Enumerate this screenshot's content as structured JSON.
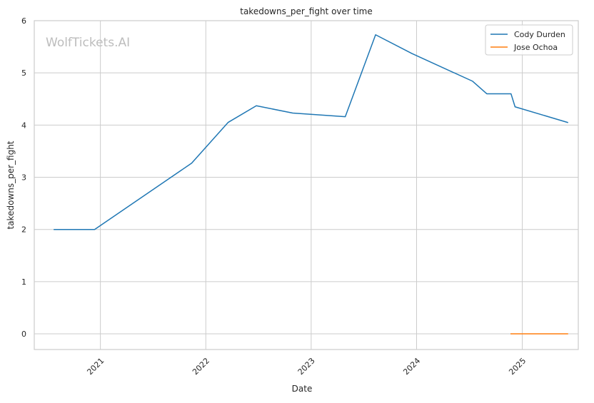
{
  "chart_data": {
    "type": "line",
    "title": "takedowns_per_fight over time",
    "xlabel": "Date",
    "ylabel": "takedowns_per_fight",
    "xlim": [
      "2020-05-17",
      "2025-07-14"
    ],
    "ylim": [
      -0.3,
      6
    ],
    "x_ticks": [
      {
        "value": "2021-01-01",
        "label": "2021"
      },
      {
        "value": "2022-01-01",
        "label": "2022"
      },
      {
        "value": "2023-01-01",
        "label": "2023"
      },
      {
        "value": "2024-01-01",
        "label": "2024"
      },
      {
        "value": "2025-01-01",
        "label": "2025"
      }
    ],
    "y_ticks": [
      0,
      1,
      2,
      3,
      4,
      5,
      6
    ],
    "grid": true,
    "legend_position": "top-right",
    "watermark": "WolfTickets.AI",
    "series": [
      {
        "name": "Cody Durden",
        "color": "#1f77b4",
        "points": [
          {
            "x": "2020-07-25",
            "y": 2.0
          },
          {
            "x": "2020-12-12",
            "y": 2.0
          },
          {
            "x": "2021-11-13",
            "y": 3.27
          },
          {
            "x": "2022-03-19",
            "y": 4.05
          },
          {
            "x": "2022-06-25",
            "y": 4.37
          },
          {
            "x": "2022-10-29",
            "y": 4.23
          },
          {
            "x": "2023-04-29",
            "y": 4.16
          },
          {
            "x": "2023-08-12",
            "y": 5.73
          },
          {
            "x": "2023-12-16",
            "y": 5.37
          },
          {
            "x": "2024-07-13",
            "y": 4.84
          },
          {
            "x": "2024-08-31",
            "y": 4.6
          },
          {
            "x": "2024-11-23",
            "y": 4.6
          },
          {
            "x": "2024-12-07",
            "y": 4.35
          },
          {
            "x": "2025-06-07",
            "y": 4.05
          }
        ]
      },
      {
        "name": "Jose Ochoa",
        "color": "#ff7f0e",
        "points": [
          {
            "x": "2024-11-23",
            "y": 0.0
          },
          {
            "x": "2025-06-07",
            "y": 0.0
          }
        ]
      }
    ]
  }
}
